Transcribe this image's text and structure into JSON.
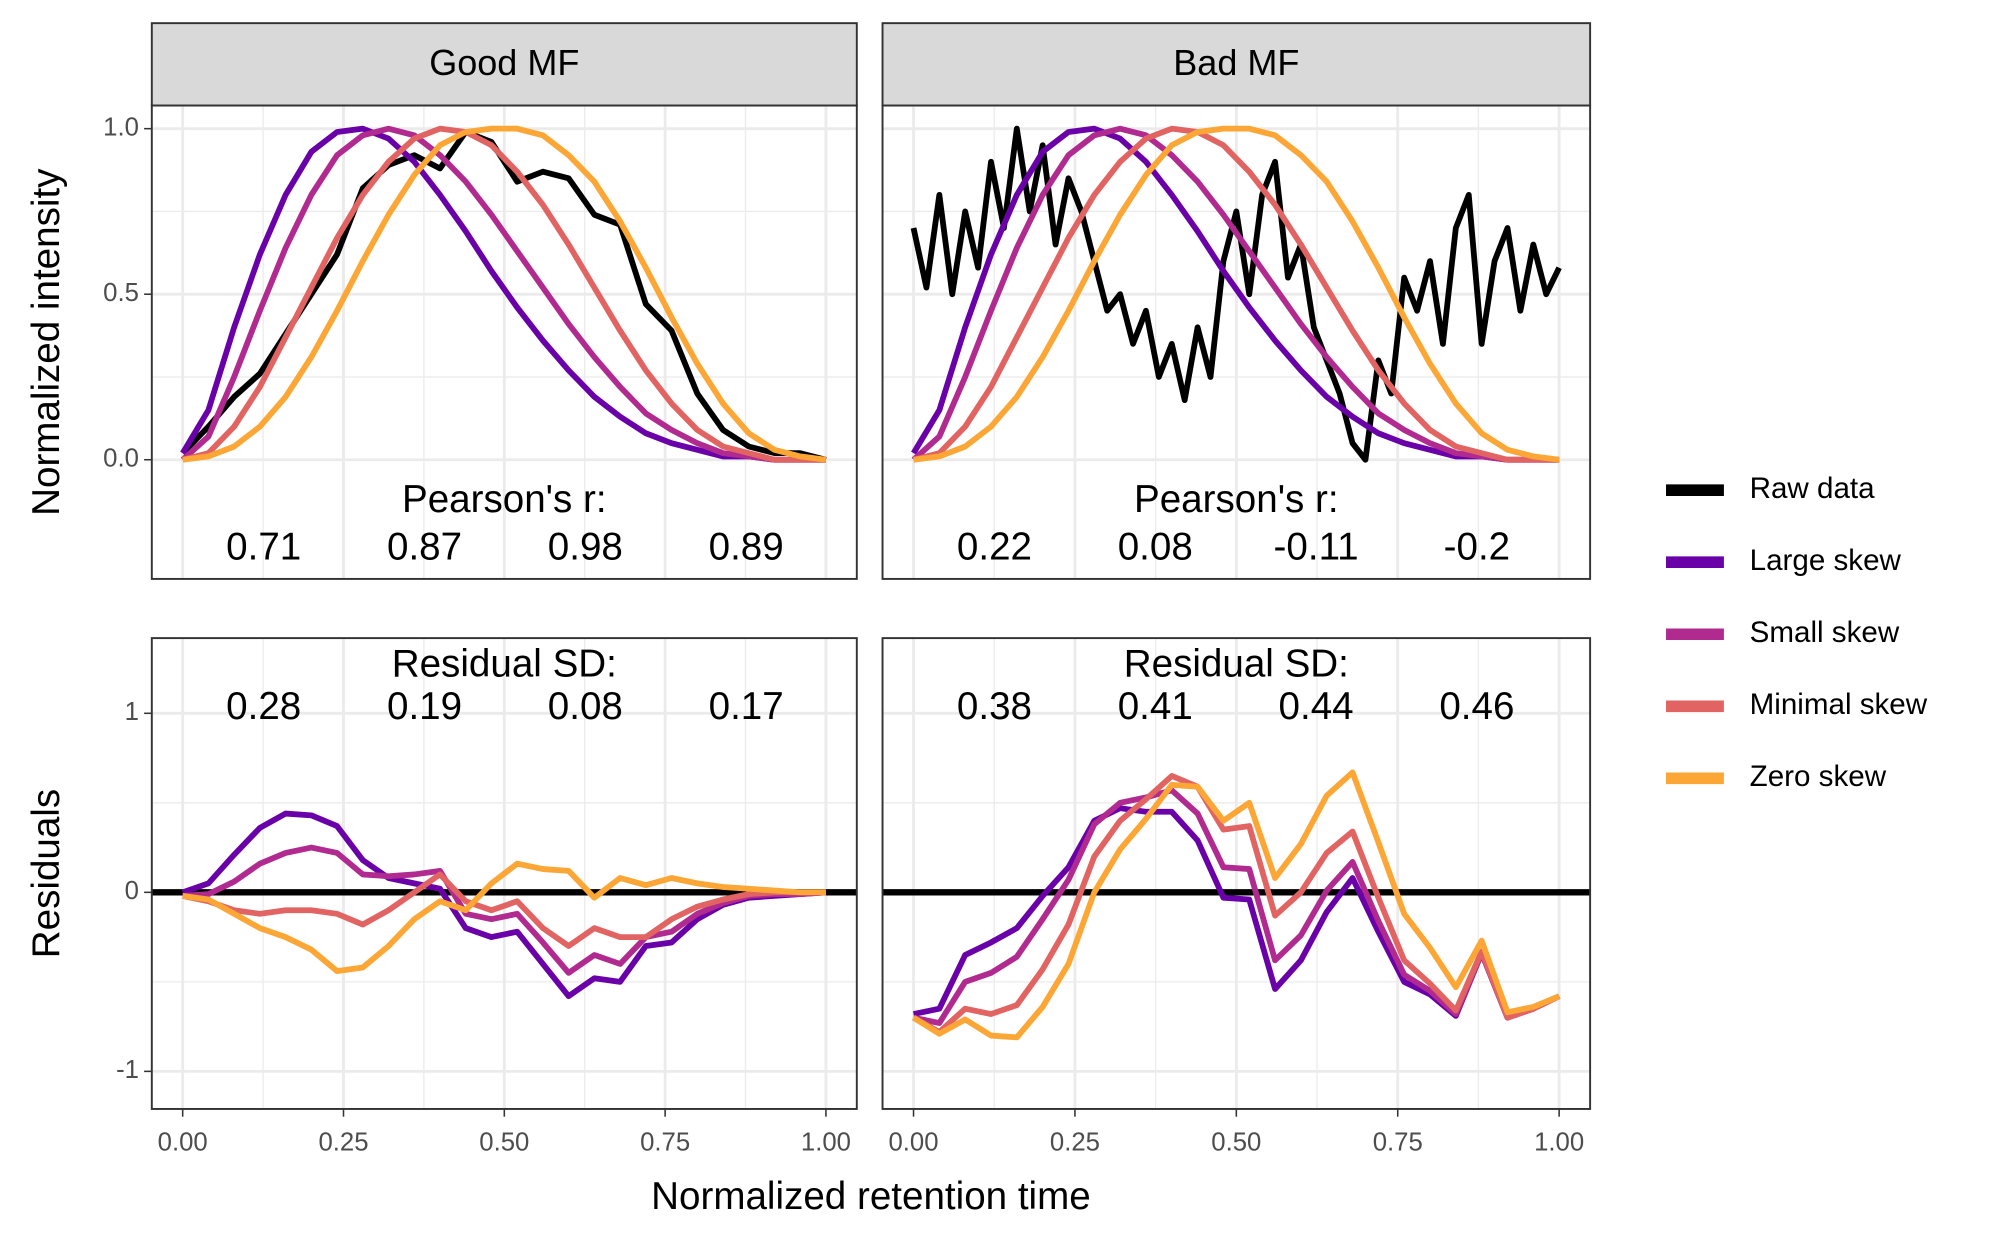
{
  "chart_data": [
    {
      "type": "line",
      "strip": "Good MF",
      "ylabel": "Normalized intensity",
      "x": [
        0,
        0.04,
        0.08,
        0.12,
        0.16,
        0.2,
        0.24,
        0.28,
        0.32,
        0.36,
        0.4,
        0.44,
        0.48,
        0.52,
        0.56,
        0.6,
        0.64,
        0.68,
        0.72,
        0.76,
        0.8,
        0.84,
        0.88,
        0.92,
        0.96,
        1
      ],
      "series": [
        {
          "name": "Raw data",
          "color": "#000000",
          "values": [
            0.02,
            0.1,
            0.19,
            0.26,
            0.38,
            0.5,
            0.62,
            0.82,
            0.89,
            0.92,
            0.88,
            0.99,
            0.96,
            0.84,
            0.87,
            0.85,
            0.74,
            0.71,
            0.47,
            0.39,
            0.2,
            0.09,
            0.04,
            0.02,
            0.02,
            0
          ]
        },
        {
          "name": "Large skew",
          "color": "#6a00a8",
          "values": [
            0.02,
            0.15,
            0.4,
            0.62,
            0.8,
            0.93,
            0.99,
            1,
            0.97,
            0.9,
            0.8,
            0.69,
            0.57,
            0.46,
            0.36,
            0.27,
            0.19,
            0.13,
            0.08,
            0.05,
            0.03,
            0.01,
            0.01,
            0,
            0,
            0
          ]
        },
        {
          "name": "Small skew",
          "color": "#b12a90",
          "values": [
            0,
            0.07,
            0.25,
            0.45,
            0.64,
            0.8,
            0.92,
            0.98,
            1,
            0.98,
            0.92,
            0.84,
            0.74,
            0.63,
            0.52,
            0.41,
            0.31,
            0.22,
            0.14,
            0.09,
            0.05,
            0.02,
            0.01,
            0,
            0,
            0
          ]
        },
        {
          "name": "Minimal skew",
          "color": "#e16462",
          "values": [
            0,
            0.02,
            0.1,
            0.22,
            0.37,
            0.52,
            0.67,
            0.8,
            0.9,
            0.97,
            1,
            0.99,
            0.95,
            0.87,
            0.77,
            0.65,
            0.52,
            0.39,
            0.27,
            0.17,
            0.09,
            0.04,
            0.02,
            0,
            0,
            0
          ]
        },
        {
          "name": "Zero skew",
          "color": "#fca636",
          "values": [
            0,
            0.01,
            0.04,
            0.1,
            0.19,
            0.31,
            0.45,
            0.6,
            0.74,
            0.86,
            0.95,
            0.99,
            1,
            1,
            0.98,
            0.92,
            0.84,
            0.72,
            0.58,
            0.43,
            0.29,
            0.17,
            0.08,
            0.03,
            0.01,
            0
          ]
        }
      ],
      "annotation": {
        "label": "Pearson's r:",
        "values": [
          0.71,
          0.87,
          0.98,
          0.89
        ]
      },
      "xlim": [
        -0.048,
        1.048
      ],
      "ylim": [
        -0.36,
        1.07
      ],
      "xticks": [
        0,
        0.25,
        0.5,
        0.75,
        1
      ],
      "xtick_labels": false,
      "yticks": [
        {
          "value": 0,
          "label": "0.0"
        },
        {
          "value": 0.5,
          "label": "0.5"
        },
        {
          "value": 1,
          "label": "1.0"
        }
      ],
      "ytick_labels": true,
      "grid": true
    },
    {
      "type": "line",
      "strip": "Bad MF",
      "x": [
        0,
        0.04,
        0.08,
        0.12,
        0.16,
        0.2,
        0.24,
        0.28,
        0.32,
        0.36,
        0.4,
        0.44,
        0.48,
        0.52,
        0.56,
        0.6,
        0.64,
        0.68,
        0.72,
        0.76,
        0.8,
        0.84,
        0.88,
        0.92,
        0.96,
        1
      ],
      "series": [
        {
          "name": "Raw data",
          "color": "#000000",
          "x": [
            0,
            0.02,
            0.04,
            0.06,
            0.08,
            0.1,
            0.12,
            0.14,
            0.16,
            0.18,
            0.2,
            0.22,
            0.24,
            0.26,
            0.28,
            0.3,
            0.32,
            0.34,
            0.36,
            0.38,
            0.4,
            0.42,
            0.44,
            0.46,
            0.48,
            0.5,
            0.52,
            0.54,
            0.56,
            0.58,
            0.6,
            0.62,
            0.64,
            0.66,
            0.68,
            0.7,
            0.72,
            0.74,
            0.76,
            0.78,
            0.8,
            0.82,
            0.84,
            0.86,
            0.88,
            0.9,
            0.92,
            0.94,
            0.96,
            0.98,
            1
          ],
          "values": [
            0.7,
            0.52,
            0.8,
            0.5,
            0.75,
            0.58,
            0.9,
            0.7,
            1,
            0.75,
            0.95,
            0.65,
            0.85,
            0.75,
            0.6,
            0.45,
            0.5,
            0.35,
            0.45,
            0.25,
            0.35,
            0.18,
            0.4,
            0.25,
            0.6,
            0.75,
            0.5,
            0.8,
            0.9,
            0.55,
            0.65,
            0.4,
            0.3,
            0.2,
            0.05,
            0,
            0.3,
            0.2,
            0.55,
            0.45,
            0.6,
            0.35,
            0.7,
            0.8,
            0.35,
            0.6,
            0.7,
            0.45,
            0.65,
            0.5,
            0.58
          ]
        },
        {
          "name": "Large skew",
          "color": "#6a00a8",
          "values": [
            0.02,
            0.15,
            0.4,
            0.62,
            0.8,
            0.93,
            0.99,
            1,
            0.97,
            0.9,
            0.8,
            0.69,
            0.57,
            0.46,
            0.36,
            0.27,
            0.19,
            0.13,
            0.08,
            0.05,
            0.03,
            0.01,
            0.01,
            0,
            0,
            0
          ]
        },
        {
          "name": "Small skew",
          "color": "#b12a90",
          "values": [
            0,
            0.07,
            0.25,
            0.45,
            0.64,
            0.8,
            0.92,
            0.98,
            1,
            0.98,
            0.92,
            0.84,
            0.74,
            0.63,
            0.52,
            0.41,
            0.31,
            0.22,
            0.14,
            0.09,
            0.05,
            0.02,
            0.01,
            0,
            0,
            0
          ]
        },
        {
          "name": "Minimal skew",
          "color": "#e16462",
          "values": [
            0,
            0.02,
            0.1,
            0.22,
            0.37,
            0.52,
            0.67,
            0.8,
            0.9,
            0.97,
            1,
            0.99,
            0.95,
            0.87,
            0.77,
            0.65,
            0.52,
            0.39,
            0.27,
            0.17,
            0.09,
            0.04,
            0.02,
            0,
            0,
            0
          ]
        },
        {
          "name": "Zero skew",
          "color": "#fca636",
          "values": [
            0,
            0.01,
            0.04,
            0.1,
            0.19,
            0.31,
            0.45,
            0.6,
            0.74,
            0.86,
            0.95,
            0.99,
            1,
            1,
            0.98,
            0.92,
            0.84,
            0.72,
            0.58,
            0.43,
            0.29,
            0.17,
            0.08,
            0.03,
            0.01,
            0
          ]
        }
      ],
      "annotation": {
        "label": "Pearson's r:",
        "values": [
          0.22,
          0.08,
          -0.11,
          -0.2
        ]
      },
      "xlim": [
        -0.048,
        1.048
      ],
      "ylim": [
        -0.36,
        1.07
      ],
      "xticks": [
        0,
        0.25,
        0.5,
        0.75,
        1
      ],
      "xtick_labels": false,
      "yticks": [
        0,
        0.5,
        1
      ],
      "ytick_labels": false,
      "grid": true
    },
    {
      "type": "line",
      "ylabel": "Residuals",
      "x": [
        0,
        0.04,
        0.08,
        0.12,
        0.16,
        0.2,
        0.24,
        0.28,
        0.32,
        0.36,
        0.4,
        0.44,
        0.48,
        0.52,
        0.56,
        0.6,
        0.64,
        0.68,
        0.72,
        0.76,
        0.8,
        0.84,
        0.88,
        0.92,
        0.96,
        1
      ],
      "series": [
        {
          "name": "Large skew",
          "color": "#6a00a8",
          "values": [
            0,
            0.05,
            0.21,
            0.36,
            0.44,
            0.43,
            0.37,
            0.18,
            0.08,
            0.05,
            0.02,
            -0.2,
            -0.25,
            -0.22,
            -0.4,
            -0.58,
            -0.48,
            -0.5,
            -0.3,
            -0.28,
            -0.15,
            -0.07,
            -0.03,
            -0.02,
            -0.01,
            0
          ]
        },
        {
          "name": "Small skew",
          "color": "#b12a90",
          "values": [
            -0.02,
            -0.01,
            0.06,
            0.16,
            0.22,
            0.25,
            0.22,
            0.1,
            0.09,
            0.1,
            0.12,
            -0.12,
            -0.15,
            -0.12,
            -0.28,
            -0.45,
            -0.35,
            -0.4,
            -0.25,
            -0.22,
            -0.12,
            -0.06,
            -0.02,
            -0.01,
            -0.01,
            0
          ]
        },
        {
          "name": "Minimal skew",
          "color": "#e16462",
          "values": [
            -0.02,
            -0.05,
            -0.1,
            -0.12,
            -0.1,
            -0.1,
            -0.12,
            -0.18,
            -0.1,
            0,
            0.1,
            -0.05,
            -0.1,
            -0.05,
            -0.2,
            -0.3,
            -0.2,
            -0.25,
            -0.25,
            -0.15,
            -0.08,
            -0.04,
            -0.01,
            0,
            0,
            0
          ]
        },
        {
          "name": "Zero skew",
          "color": "#fca636",
          "values": [
            -0.02,
            -0.04,
            -0.12,
            -0.2,
            -0.25,
            -0.32,
            -0.44,
            -0.42,
            -0.3,
            -0.15,
            -0.05,
            -0.1,
            0.05,
            0.16,
            0.13,
            0.12,
            -0.03,
            0.08,
            0.04,
            0.08,
            0.05,
            0.03,
            0.02,
            0.01,
            0,
            0
          ]
        }
      ],
      "hline": 0,
      "annotation": {
        "label": "Residual SD:",
        "values": [
          0.28,
          0.19,
          0.08,
          0.17
        ]
      },
      "xlim": [
        -0.048,
        1.048
      ],
      "ylim": [
        -1.21,
        1.42
      ],
      "xticks": [
        {
          "value": 0,
          "label": "0.00"
        },
        0.25,
        {
          "value": 0.5,
          "label": "0.50"
        },
        0.75,
        {
          "value": 1,
          "label": "1.00"
        }
      ],
      "xtick_labels": true,
      "yticks": [
        -1,
        0,
        1
      ],
      "ytick_labels": true,
      "grid": true
    },
    {
      "type": "line",
      "x": [
        0,
        0.04,
        0.08,
        0.12,
        0.16,
        0.2,
        0.24,
        0.28,
        0.32,
        0.36,
        0.4,
        0.44,
        0.48,
        0.52,
        0.56,
        0.6,
        0.64,
        0.68,
        0.72,
        0.76,
        0.8,
        0.84,
        0.88,
        0.92,
        0.96,
        1
      ],
      "series": [
        {
          "name": "Large skew",
          "color": "#6a00a8",
          "values": [
            -0.68,
            -0.65,
            -0.35,
            -0.28,
            -0.2,
            -0.02,
            0.14,
            0.4,
            0.47,
            0.45,
            0.45,
            0.29,
            -0.03,
            -0.04,
            -0.54,
            -0.38,
            -0.11,
            0.08,
            -0.22,
            -0.5,
            -0.57,
            -0.69,
            -0.34,
            -0.7,
            -0.65,
            -0.58
          ]
        },
        {
          "name": "Small skew",
          "color": "#b12a90",
          "values": [
            -0.7,
            -0.73,
            -0.5,
            -0.45,
            -0.36,
            -0.15,
            0.07,
            0.38,
            0.5,
            0.53,
            0.57,
            0.44,
            0.14,
            0.13,
            -0.38,
            -0.24,
            0.01,
            0.17,
            -0.16,
            -0.46,
            -0.55,
            -0.68,
            -0.34,
            -0.7,
            -0.65,
            -0.58
          ]
        },
        {
          "name": "Minimal skew",
          "color": "#e16462",
          "values": [
            -0.7,
            -0.78,
            -0.65,
            -0.68,
            -0.63,
            -0.43,
            -0.18,
            0.2,
            0.4,
            0.52,
            0.65,
            0.59,
            0.35,
            0.37,
            -0.13,
            0,
            0.22,
            0.34,
            -0.03,
            -0.38,
            -0.51,
            -0.66,
            -0.33,
            -0.7,
            -0.65,
            -0.58
          ]
        },
        {
          "name": "Zero skew",
          "color": "#fca636",
          "values": [
            -0.7,
            -0.79,
            -0.71,
            -0.8,
            -0.81,
            -0.64,
            -0.4,
            0,
            0.24,
            0.41,
            0.6,
            0.59,
            0.4,
            0.5,
            0.08,
            0.27,
            0.54,
            0.67,
            0.28,
            -0.12,
            -0.31,
            -0.53,
            -0.27,
            -0.67,
            -0.64,
            -0.58
          ]
        }
      ],
      "hline": 0,
      "annotation": {
        "label": "Residual SD:",
        "values": [
          0.38,
          0.41,
          0.44,
          0.46
        ]
      },
      "xlim": [
        -0.048,
        1.048
      ],
      "ylim": [
        -1.21,
        1.42
      ],
      "xticks": [
        {
          "value": 0,
          "label": "0.00"
        },
        0.25,
        {
          "value": 0.5,
          "label": "0.50"
        },
        0.75,
        {
          "value": 1,
          "label": "1.00"
        }
      ],
      "xtick_labels": true,
      "yticks": [
        -1,
        0,
        1
      ],
      "ytick_labels": false,
      "grid": true
    }
  ],
  "x_label": "Normalized retention time"
}
